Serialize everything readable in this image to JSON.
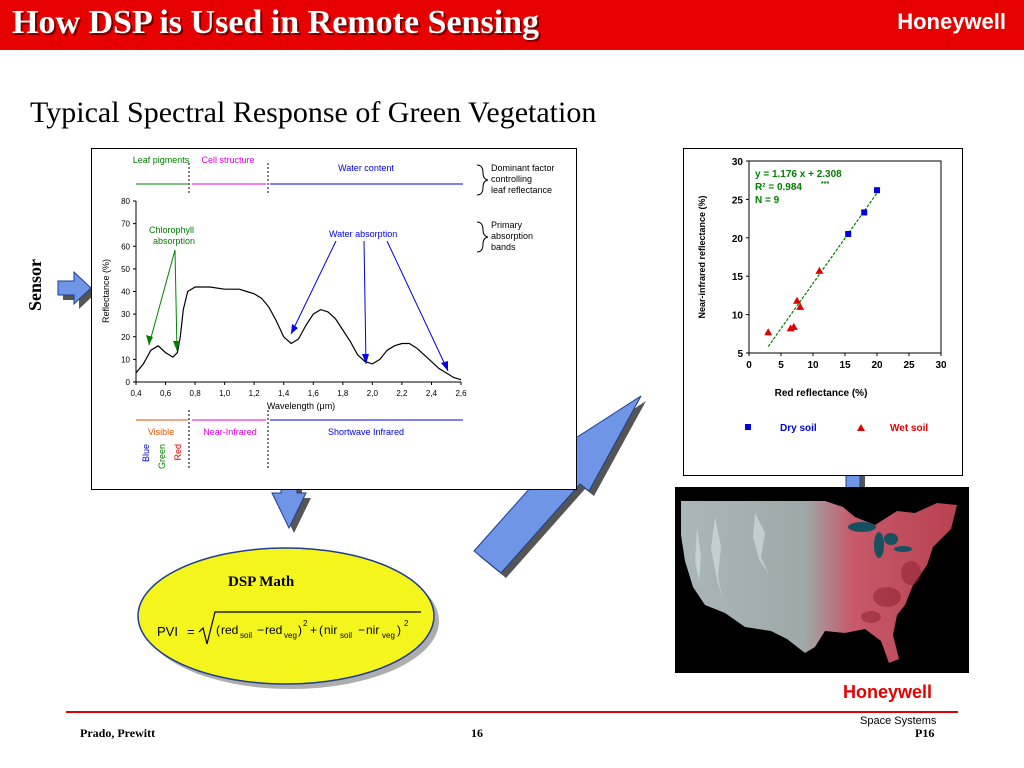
{
  "slide": {
    "title": "How DSP is Used in Remote Sensing",
    "logo": "Honeywell",
    "subtitle": "Typical Spectral Response of Green Vegetation",
    "sensor_label": "Sensor",
    "footer_logo": "Honeywell",
    "space_systems": "Space Systems",
    "authors": "Prado, Prewitt",
    "page_number": "16",
    "page_code": "P16",
    "colors": {
      "title_bar": "#e60000",
      "arrow_fill": "#6e95e6",
      "ellipse_fill": "#f5f51e"
    }
  },
  "spectral": {
    "top_labels": [
      "Leaf pigments",
      "Cell structure",
      "Water content"
    ],
    "dominant_note": [
      "Dominant factor",
      "controlling",
      "leaf reflectance"
    ],
    "primary_note": [
      "Primary",
      "absorption",
      "bands"
    ],
    "annotations": {
      "chlorophyll": [
        "Chlorophyll",
        "absorption"
      ],
      "water": "Water absorption"
    },
    "ylabel": "Reflectance (%)",
    "xlabel": "Wavelength (μm)",
    "yticks": [
      "0",
      "10",
      "20",
      "30",
      "40",
      "50",
      "60",
      "70",
      "80"
    ],
    "xticks": [
      "0,4",
      "0,6",
      "0,8",
      "1,0",
      "1,2",
      "1,4",
      "1,6",
      "1,8",
      "2,0",
      "2,2",
      "2,4",
      "2,6"
    ],
    "bottom_labels": [
      "Visible",
      "Near-Infrared",
      "Shortwave Infrared"
    ],
    "visible_bands": [
      "Blue",
      "Green",
      "Red"
    ]
  },
  "scatter": {
    "equation": "y = 1.176 x + 2.308",
    "r2": "R² = 0.984",
    "r2_sig": "***",
    "n": "N = 9",
    "ylabel": "Near-infrared reflectance (%)",
    "xlabel": "Red reflectance (%)",
    "xticks": [
      "0",
      "5",
      "10",
      "15",
      "20",
      "25",
      "30"
    ],
    "yticks": [
      "5",
      "10",
      "15",
      "20",
      "25",
      "30"
    ],
    "legend": [
      "Dry soil",
      "Wet soil"
    ]
  },
  "formula": {
    "heading": "DSP Math",
    "lhs": "PVI",
    "eq": "=",
    "red": "red",
    "soil": "soil",
    "minus": "−",
    "veg": "veg",
    "nir": "nir",
    "plus": "+",
    "sq": "2"
  },
  "chart_data": [
    {
      "type": "line",
      "xlabel": "Wavelength (μm)",
      "ylabel": "Reflectance (%)",
      "xlim": [
        0.4,
        2.6
      ],
      "ylim": [
        0,
        80
      ],
      "series": [
        {
          "x": [
            0.4,
            0.45,
            0.5,
            0.55,
            0.6,
            0.65,
            0.68,
            0.7,
            0.72,
            0.75,
            0.8,
            0.9,
            1.0,
            1.1,
            1.15,
            1.2,
            1.25,
            1.3,
            1.35,
            1.4,
            1.45,
            1.5,
            1.55,
            1.6,
            1.65,
            1.7,
            1.75,
            1.8,
            1.85,
            1.9,
            1.95,
            2.0,
            2.05,
            2.1,
            2.15,
            2.2,
            2.25,
            2.3,
            2.35,
            2.4,
            2.45,
            2.5,
            2.55,
            2.6
          ],
          "y": [
            4,
            8,
            14,
            16,
            13,
            11,
            13,
            20,
            32,
            40,
            42,
            42,
            41,
            41,
            40,
            39,
            37,
            33,
            27,
            20,
            17,
            19,
            25,
            30,
            32,
            31,
            28,
            23,
            18,
            12,
            9,
            8,
            10,
            14,
            16,
            17,
            17,
            15,
            12,
            9,
            6,
            4,
            2,
            1
          ]
        }
      ]
    },
    {
      "type": "scatter",
      "xlabel": "Red reflectance (%)",
      "ylabel": "Near-infrared reflectance (%)",
      "xlim": [
        0,
        30
      ],
      "ylim": [
        5,
        30
      ],
      "series": [
        {
          "name": "Dry soil",
          "x": [
            15.5,
            18,
            20
          ],
          "y": [
            20.5,
            23.3,
            26.2
          ]
        },
        {
          "name": "Wet soil",
          "x": [
            3,
            6.5,
            7,
            7.5,
            8,
            11
          ],
          "y": [
            7.7,
            8.2,
            8.4,
            11.8,
            11,
            15.7
          ]
        }
      ],
      "trendline": {
        "slope": 1.176,
        "intercept": 2.308,
        "x_range": [
          3,
          20.5
        ]
      }
    }
  ]
}
